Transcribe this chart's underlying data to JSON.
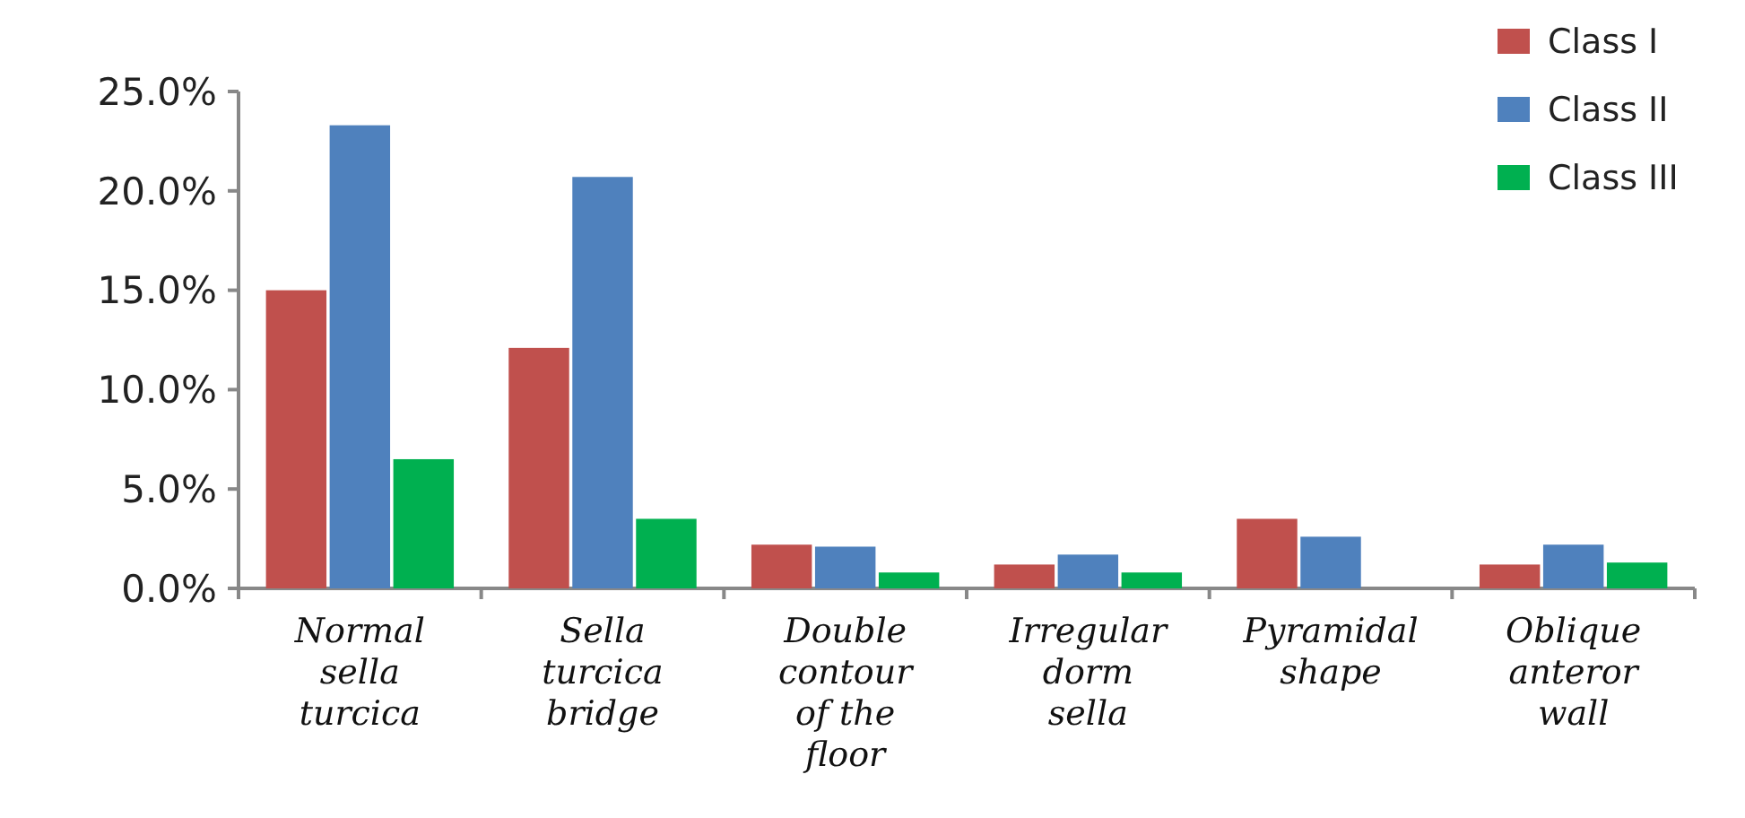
{
  "chart_data": {
    "type": "bar",
    "categories": [
      "Normal sella turcica",
      "Sella turcica bridge",
      "Double contour of the floor",
      "Irregular dorm sella",
      "Pyramidal shape",
      "Oblique anteror wall"
    ],
    "series": [
      {
        "name": "Class I",
        "color": "#c0504d",
        "values": [
          15.0,
          12.1,
          2.2,
          1.2,
          3.5,
          1.2
        ]
      },
      {
        "name": "Class II",
        "color": "#4f81bd",
        "values": [
          23.3,
          20.7,
          2.1,
          1.7,
          2.6,
          2.2
        ]
      },
      {
        "name": "Class III",
        "color": "#00b050",
        "values": [
          6.5,
          3.5,
          0.8,
          0.8,
          0.0,
          1.3
        ]
      }
    ],
    "ylim": [
      0,
      25
    ],
    "yticks": [
      {
        "value": 0,
        "label": "0.0%"
      },
      {
        "value": 5,
        "label": "5.0%"
      },
      {
        "value": 10,
        "label": "10.0%"
      },
      {
        "value": 15,
        "label": "15.0%"
      },
      {
        "value": 20,
        "label": "20.0%"
      },
      {
        "value": 25,
        "label": "25.0%"
      }
    ],
    "grid": false,
    "legend": "top right"
  }
}
